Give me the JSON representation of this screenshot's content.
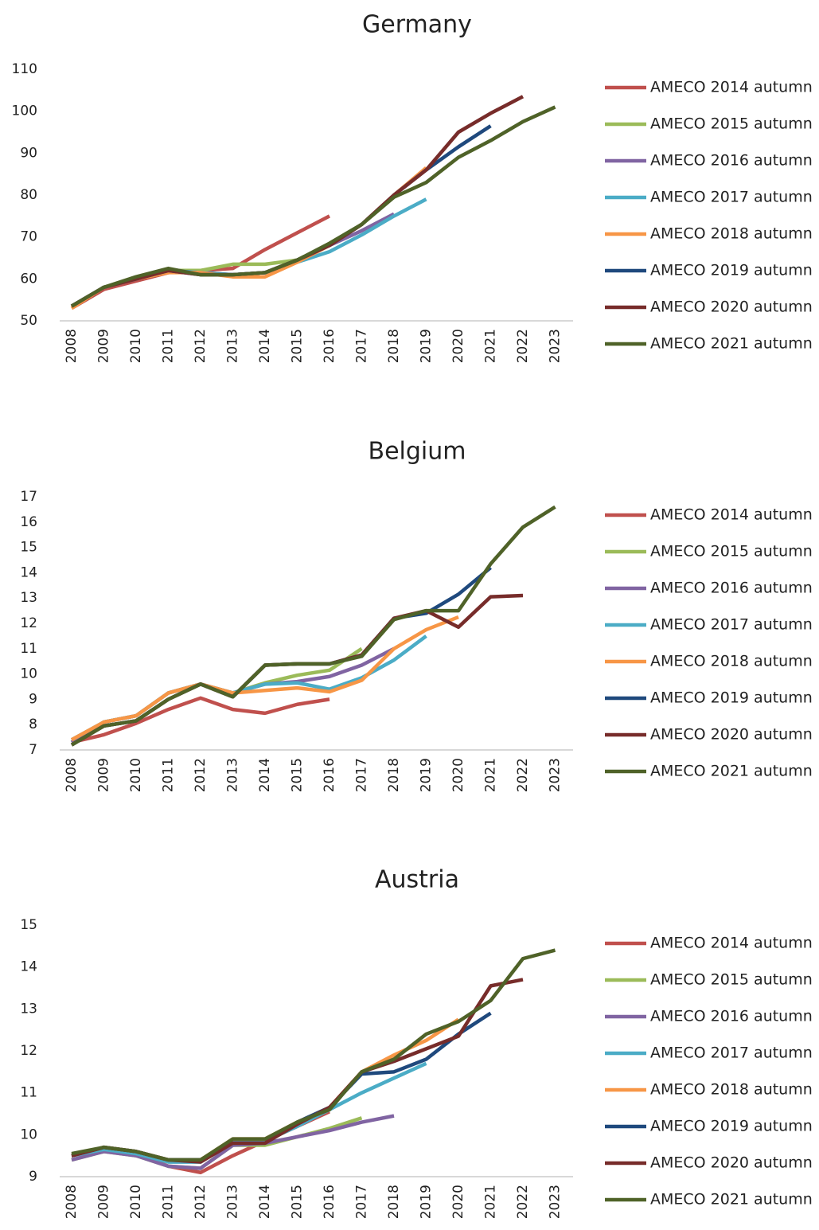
{
  "chart_data": [
    {
      "type": "line",
      "title": "Germany",
      "categories": [
        "2008",
        "2009",
        "2010",
        "2011",
        "2012",
        "2013",
        "2014",
        "2015",
        "2016",
        "2017",
        "2018",
        "2019",
        "2020",
        "2021",
        "2022",
        "2023"
      ],
      "ylim": [
        50,
        110
      ],
      "yticks": [
        50,
        60,
        70,
        80,
        90,
        100,
        110
      ],
      "series": [
        {
          "name": "AMECO 2014 autumn",
          "color": "#c0504d",
          "values": [
            53,
            57.5,
            59.5,
            61.5,
            62,
            62.5,
            67,
            71,
            75,
            null,
            null,
            null,
            null,
            null,
            null,
            null
          ]
        },
        {
          "name": "AMECO 2015 autumn",
          "color": "#9bbb59",
          "values": [
            53.5,
            58,
            60,
            62,
            62,
            63.5,
            63.5,
            64.5,
            68,
            73,
            null,
            null,
            null,
            null,
            null,
            null
          ]
        },
        {
          "name": "AMECO 2016 autumn",
          "color": "#8064a2",
          "values": [
            53.5,
            58,
            60,
            62,
            61.5,
            61,
            61.5,
            64.5,
            68,
            71.5,
            75.5,
            null,
            null,
            null,
            null,
            null
          ]
        },
        {
          "name": "AMECO 2017 autumn",
          "color": "#4bacc6",
          "values": [
            53.5,
            58,
            60,
            62,
            61.5,
            61,
            61.5,
            64,
            66.5,
            70.5,
            75,
            79,
            null,
            null,
            null,
            null
          ]
        },
        {
          "name": "AMECO 2018 autumn",
          "color": "#f79646",
          "values": [
            53,
            58,
            60,
            61.5,
            61.5,
            60.5,
            60.5,
            64,
            68,
            73,
            80,
            86.5,
            null,
            null,
            null,
            null
          ]
        },
        {
          "name": "AMECO 2019 autumn",
          "color": "#1f497d",
          "values": [
            53.5,
            58,
            60,
            62,
            61,
            61,
            61.5,
            64.5,
            68,
            73,
            80,
            86,
            91.5,
            96.5,
            null,
            null
          ]
        },
        {
          "name": "AMECO 2020 autumn",
          "color": "#772c2a",
          "values": [
            53.5,
            58,
            60,
            62,
            61,
            61,
            61.5,
            64.5,
            68,
            73,
            80,
            86,
            95,
            99.5,
            103.5,
            null
          ]
        },
        {
          "name": "AMECO 2021 autumn",
          "color": "#4f6228",
          "values": [
            53.5,
            58,
            60.5,
            62.5,
            61,
            61,
            61.5,
            64.5,
            68.5,
            73,
            79.5,
            83,
            89,
            93,
            97.5,
            101
          ]
        }
      ]
    },
    {
      "type": "line",
      "title": "Belgium",
      "categories": [
        "2008",
        "2009",
        "2010",
        "2011",
        "2012",
        "2013",
        "2014",
        "2015",
        "2016",
        "2017",
        "2018",
        "2019",
        "2020",
        "2021",
        "2022",
        "2023"
      ],
      "ylim": [
        7,
        17
      ],
      "yticks": [
        7,
        8,
        9,
        10,
        11,
        12,
        13,
        14,
        15,
        16,
        17
      ],
      "series": [
        {
          "name": "AMECO 2014 autumn",
          "color": "#c0504d",
          "values": [
            7.3,
            7.6,
            8.05,
            8.6,
            9.05,
            8.6,
            8.45,
            8.8,
            9.0,
            null,
            null,
            null,
            null,
            null,
            null,
            null
          ]
        },
        {
          "name": "AMECO 2015 autumn",
          "color": "#9bbb59",
          "values": [
            7.3,
            8.1,
            8.35,
            9.25,
            9.6,
            9.25,
            9.65,
            9.95,
            10.15,
            11.0,
            null,
            null,
            null,
            null,
            null,
            null
          ]
        },
        {
          "name": "AMECO 2016 autumn",
          "color": "#8064a2",
          "values": [
            7.3,
            8.1,
            8.35,
            9.25,
            9.6,
            9.25,
            9.6,
            9.7,
            9.9,
            10.35,
            11.0,
            null,
            null,
            null,
            null,
            null
          ]
        },
        {
          "name": "AMECO 2017 autumn",
          "color": "#4bacc6",
          "values": [
            7.4,
            8.1,
            8.35,
            9.25,
            9.6,
            9.25,
            9.6,
            9.65,
            9.4,
            9.85,
            10.55,
            11.5,
            null,
            null,
            null,
            null
          ]
        },
        {
          "name": "AMECO 2018 autumn",
          "color": "#f79646",
          "values": [
            7.4,
            8.1,
            8.35,
            9.25,
            9.6,
            9.25,
            9.35,
            9.45,
            9.3,
            9.75,
            11.0,
            11.75,
            12.25,
            null,
            null,
            null
          ]
        },
        {
          "name": "AMECO 2019 autumn",
          "color": "#1f497d",
          "values": [
            7.2,
            7.95,
            8.15,
            9.0,
            9.6,
            9.1,
            10.35,
            10.4,
            10.4,
            10.75,
            12.2,
            12.4,
            13.15,
            14.2,
            null,
            null
          ]
        },
        {
          "name": "AMECO 2020 autumn",
          "color": "#772c2a",
          "values": [
            7.2,
            7.95,
            8.15,
            9.0,
            9.6,
            9.1,
            10.35,
            10.4,
            10.4,
            10.75,
            12.2,
            12.5,
            11.85,
            13.05,
            13.1,
            null
          ]
        },
        {
          "name": "AMECO 2021 autumn",
          "color": "#4f6228",
          "values": [
            7.2,
            7.95,
            8.15,
            9.0,
            9.6,
            9.1,
            10.35,
            10.4,
            10.4,
            10.7,
            12.15,
            12.5,
            12.5,
            14.35,
            15.8,
            16.6
          ]
        }
      ]
    },
    {
      "type": "line",
      "title": "Austria",
      "categories": [
        "2008",
        "2009",
        "2010",
        "2011",
        "2012",
        "2013",
        "2014",
        "2015",
        "2016",
        "2017",
        "2018",
        "2019",
        "2020",
        "2021",
        "2022",
        "2023"
      ],
      "ylim": [
        9,
        15
      ],
      "yticks": [
        9,
        10,
        11,
        12,
        13,
        14,
        15
      ],
      "series": [
        {
          "name": "AMECO 2014 autumn",
          "color": "#c0504d",
          "values": [
            9.5,
            9.65,
            9.55,
            9.25,
            9.1,
            9.5,
            9.85,
            10.2,
            10.55,
            null,
            null,
            null,
            null,
            null,
            null,
            null
          ]
        },
        {
          "name": "AMECO 2015 autumn",
          "color": "#9bbb59",
          "values": [
            9.4,
            9.6,
            9.5,
            9.25,
            9.2,
            9.75,
            9.75,
            9.95,
            10.15,
            10.4,
            null,
            null,
            null,
            null,
            null,
            null
          ]
        },
        {
          "name": "AMECO 2016 autumn",
          "color": "#8064a2",
          "values": [
            9.4,
            9.6,
            9.5,
            9.25,
            9.2,
            9.75,
            9.8,
            9.95,
            10.1,
            10.3,
            10.45,
            null,
            null,
            null,
            null,
            null
          ]
        },
        {
          "name": "AMECO 2017 autumn",
          "color": "#4bacc6",
          "values": [
            9.5,
            9.65,
            9.55,
            9.35,
            9.35,
            9.85,
            9.85,
            10.2,
            10.6,
            11.0,
            11.35,
            11.7,
            null,
            null,
            null,
            null
          ]
        },
        {
          "name": "AMECO 2018 autumn",
          "color": "#f79646",
          "values": [
            9.5,
            9.7,
            9.6,
            9.4,
            9.4,
            9.9,
            9.9,
            10.3,
            10.65,
            11.5,
            11.9,
            12.25,
            12.75,
            null,
            null,
            null
          ]
        },
        {
          "name": "AMECO 2019 autumn",
          "color": "#1f497d",
          "values": [
            9.5,
            9.7,
            9.6,
            9.4,
            9.4,
            9.8,
            9.8,
            10.3,
            10.65,
            11.45,
            11.5,
            11.8,
            12.4,
            12.9,
            null,
            null
          ]
        },
        {
          "name": "AMECO 2020 autumn",
          "color": "#772c2a",
          "values": [
            9.5,
            9.7,
            9.6,
            9.4,
            9.35,
            9.8,
            9.8,
            10.25,
            10.65,
            11.5,
            11.75,
            12.05,
            12.35,
            13.55,
            13.7,
            null
          ]
        },
        {
          "name": "AMECO 2021 autumn",
          "color": "#4f6228",
          "values": [
            9.55,
            9.7,
            9.6,
            9.4,
            9.4,
            9.9,
            9.9,
            10.3,
            10.6,
            11.5,
            11.8,
            12.4,
            12.7,
            13.2,
            14.2,
            14.4
          ]
        }
      ]
    }
  ]
}
